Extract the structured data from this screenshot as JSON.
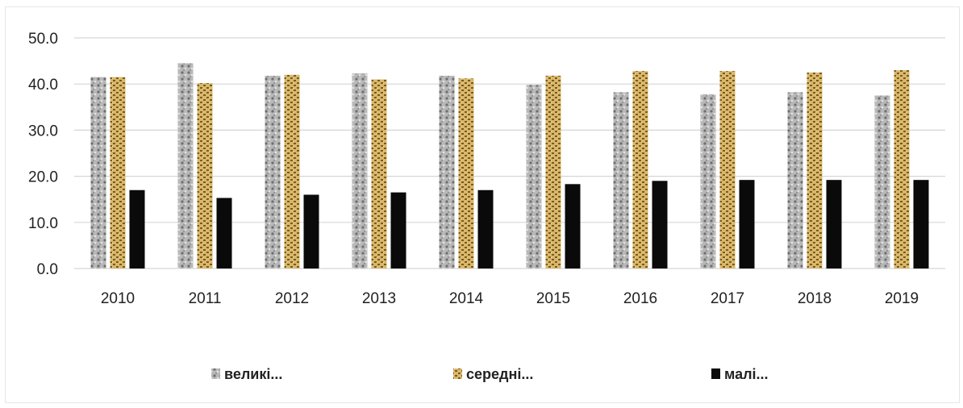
{
  "chart_data": {
    "type": "bar",
    "categories": [
      "2010",
      "2011",
      "2012",
      "2013",
      "2014",
      "2015",
      "2016",
      "2017",
      "2018",
      "2019"
    ],
    "series": [
      {
        "name": "великі...",
        "values": [
          41.5,
          44.5,
          41.8,
          42.3,
          41.8,
          39.8,
          38.2,
          37.8,
          38.2,
          37.5
        ],
        "color": "#a9a9a9"
      },
      {
        "name": "середні...",
        "values": [
          41.5,
          40.2,
          42.0,
          41.0,
          41.2,
          41.8,
          42.8,
          42.8,
          42.5,
          43.0
        ],
        "color": "#c9a85c"
      },
      {
        "name": "малі...",
        "values": [
          17.0,
          15.3,
          16.0,
          16.5,
          17.0,
          18.3,
          19.0,
          19.2,
          19.2,
          19.2
        ],
        "color": "#0a0a0a"
      }
    ],
    "y_ticks": [
      "0.0",
      "10.0",
      "20.0",
      "30.0",
      "40.0",
      "50.0"
    ],
    "ylim": [
      0,
      50
    ],
    "grid": true,
    "legend_position": "bottom"
  }
}
